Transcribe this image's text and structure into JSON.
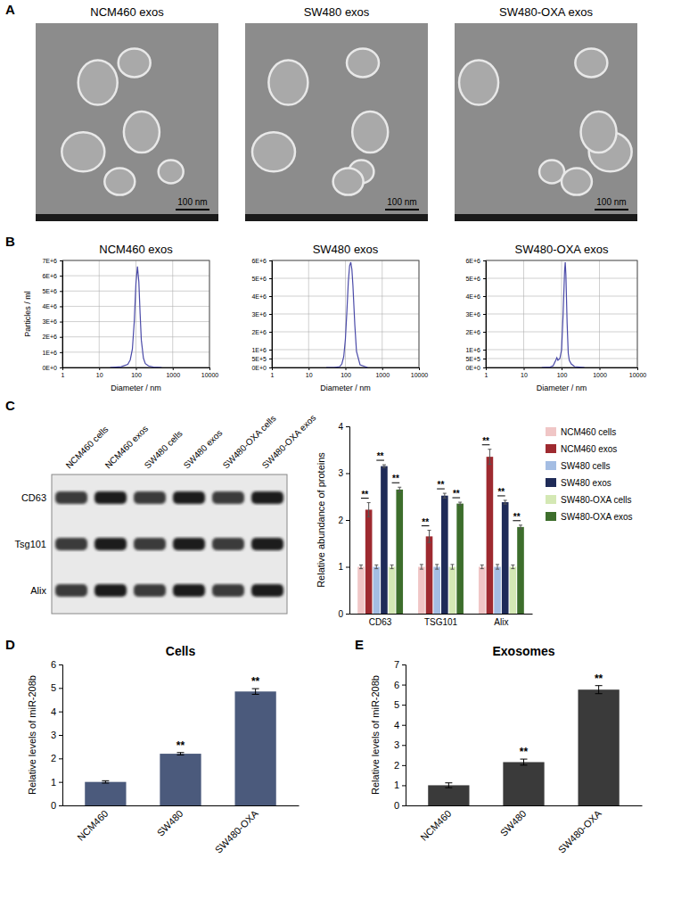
{
  "panel_labels": [
    "A",
    "B",
    "C",
    "D",
    "E"
  ],
  "micrographs": [
    {
      "title": "NCM460 exos",
      "scale_bar": "100 nm"
    },
    {
      "title": "SW480 exos",
      "scale_bar": "100 nm"
    },
    {
      "title": "SW480-OXA exos",
      "scale_bar": "100 nm"
    }
  ],
  "blot": {
    "lanes": [
      "NCM460 cells",
      "NCM460 exos",
      "SW480 cells",
      "SW480 exos",
      "SW480-OXA cells",
      "SW480-OXA exos"
    ],
    "rows": [
      "CD63",
      "Tsg101",
      "Alix"
    ]
  },
  "chart_data": [
    {
      "type": "line",
      "title": "NCM460 exos",
      "xlabel": "Diameter / nm",
      "ylabel": "Particles / ml",
      "log": "x",
      "grid": true,
      "color": "#4a4aa8",
      "x": [
        20,
        40,
        60,
        70,
        80,
        90,
        100,
        110,
        120,
        130,
        140,
        160,
        180,
        220,
        300,
        500
      ],
      "values": [
        0,
        50000,
        200000,
        500000,
        1200000,
        3000000,
        5500000,
        6600000,
        5600000,
        3500000,
        1800000,
        600000,
        250000,
        100000,
        30000,
        0
      ],
      "xlim": [
        1,
        10000
      ],
      "xticks": [
        1,
        10,
        100,
        1000,
        10000
      ],
      "ylim": [
        0,
        7000000
      ],
      "yticks": [
        {
          "value": 0,
          "label": "0E+0"
        },
        {
          "value": 1000000,
          "label": "1E+6"
        },
        {
          "value": 2000000,
          "label": "2E+6"
        },
        {
          "value": 3000000,
          "label": "3E+6"
        },
        {
          "value": 4000000,
          "label": "4E+6"
        },
        {
          "value": 5000000,
          "label": "5E+6"
        },
        {
          "value": 6000000,
          "label": "6E+6"
        },
        {
          "value": 7000000,
          "label": "7E+6"
        }
      ]
    },
    {
      "type": "line",
      "title": "SW480 exos",
      "xlabel": "Diameter / nm",
      "log": "x",
      "grid": true,
      "color": "#4a4aa8",
      "x": [
        30,
        50,
        70,
        80,
        90,
        100,
        110,
        120,
        130,
        140,
        150,
        160,
        180,
        200,
        250,
        400
      ],
      "values": [
        0,
        0,
        50000,
        200000,
        600000,
        1600000,
        3200000,
        4800000,
        5700000,
        5900000,
        5500000,
        4600000,
        2400000,
        900000,
        150000,
        0
      ],
      "xlim": [
        1,
        10000
      ],
      "xticks": [
        1,
        10,
        100,
        1000,
        10000
      ],
      "ylim": [
        0,
        6000000
      ],
      "yticks": [
        {
          "value": 0,
          "label": "0E+0"
        },
        {
          "value": 500000,
          "label": "5E+5"
        },
        {
          "value": 1000000,
          "label": "1E+6"
        },
        {
          "value": 2000000,
          "label": "2E+6"
        },
        {
          "value": 3000000,
          "label": "3E+6"
        },
        {
          "value": 4000000,
          "label": "4E+6"
        },
        {
          "value": 5000000,
          "label": "5E+6"
        },
        {
          "value": 6000000,
          "label": "6E+6"
        }
      ]
    },
    {
      "type": "line",
      "title": "SW480-OXA exos",
      "xlabel": "Diameter / nm",
      "log": "x",
      "grid": true,
      "color": "#4a4aa8",
      "x": [
        30,
        50,
        60,
        70,
        75,
        80,
        90,
        100,
        110,
        120,
        125,
        130,
        140,
        150,
        160,
        180,
        220,
        400
      ],
      "values": [
        0,
        20000,
        100000,
        400000,
        550000,
        400000,
        500000,
        1000000,
        3000000,
        5400000,
        5900000,
        5200000,
        2500000,
        800000,
        400000,
        200000,
        50000,
        0
      ],
      "xlim": [
        1,
        10000
      ],
      "xticks": [
        1,
        10,
        100,
        1000,
        10000
      ],
      "ylim": [
        0,
        6000000
      ],
      "yticks": [
        {
          "value": 0,
          "label": "0E+0"
        },
        {
          "value": 500000,
          "label": "5E+5"
        },
        {
          "value": 1000000,
          "label": "1E+6"
        },
        {
          "value": 2000000,
          "label": "2E+6"
        },
        {
          "value": 3000000,
          "label": "3E+6"
        },
        {
          "value": 4000000,
          "label": "4E+6"
        },
        {
          "value": 5000000,
          "label": "5E+6"
        },
        {
          "value": 6000000,
          "label": "6E+6"
        }
      ]
    },
    {
      "type": "bar",
      "ylabel": "Relative abundance of proteins",
      "legend": "right",
      "categories": [
        "CD63",
        "TSG101",
        "Alix"
      ],
      "series": [
        {
          "name": "NCM460 cells",
          "color": "#f0c6c6",
          "values": [
            1,
            1,
            1
          ],
          "errors": [
            0.04,
            0.05,
            0.04
          ]
        },
        {
          "name": "NCM460 exos",
          "color": "#9e2a30",
          "values": [
            2.22,
            1.65,
            3.35
          ],
          "errors": [
            0.15,
            0.13,
            0.16
          ]
        },
        {
          "name": "SW480 cells",
          "color": "#a4bde3",
          "values": [
            1,
            1,
            1
          ],
          "errors": [
            0.04,
            0.05,
            0.05
          ]
        },
        {
          "name": "SW480 exos",
          "color": "#1f2b58",
          "values": [
            3.15,
            2.52,
            2.38
          ],
          "errors": [
            0.03,
            0.05,
            0.04
          ]
        },
        {
          "name": "SW480-OXA cells",
          "color": "#d4e8b4",
          "values": [
            1,
            1,
            1
          ],
          "errors": [
            0.04,
            0.05,
            0.04
          ]
        },
        {
          "name": "SW480-OXA exos",
          "color": "#3d6e2c",
          "values": [
            2.65,
            2.35,
            1.85
          ],
          "errors": [
            0.05,
            0.03,
            0.04
          ]
        }
      ],
      "ylim": [
        0,
        4
      ],
      "yticks": [
        0,
        1,
        2,
        3,
        4
      ],
      "significance": [
        {
          "category": "CD63",
          "series": [
            "NCM460 cells",
            "NCM460 exos"
          ],
          "label": "**"
        },
        {
          "category": "CD63",
          "series": [
            "SW480 cells",
            "SW480 exos"
          ],
          "label": "**"
        },
        {
          "category": "CD63",
          "series": [
            "SW480-OXA cells",
            "SW480-OXA exos"
          ],
          "label": "**"
        },
        {
          "category": "TSG101",
          "series": [
            "NCM460 cells",
            "NCM460 exos"
          ],
          "label": "**"
        },
        {
          "category": "TSG101",
          "series": [
            "SW480 cells",
            "SW480 exos"
          ],
          "label": "**"
        },
        {
          "category": "TSG101",
          "series": [
            "SW480-OXA cells",
            "SW480-OXA exos"
          ],
          "label": "**"
        },
        {
          "category": "Alix",
          "series": [
            "NCM460 cells",
            "NCM460 exos"
          ],
          "label": "**"
        },
        {
          "category": "Alix",
          "series": [
            "SW480 cells",
            "SW480 exos"
          ],
          "label": "**"
        },
        {
          "category": "Alix",
          "series": [
            "SW480-OXA cells",
            "SW480-OXA exos"
          ],
          "label": "**"
        }
      ]
    },
    {
      "type": "bar",
      "title": "Cells",
      "ylabel": "Relative levels of miR-208b",
      "color": "#4b5a7c",
      "categories": [
        "NCM460",
        "SW480",
        "SW480-OXA"
      ],
      "values": [
        1,
        2.2,
        4.85
      ],
      "errors": [
        0.05,
        0.05,
        0.12
      ],
      "ylim": [
        0,
        6
      ],
      "yticks": [
        0,
        1,
        2,
        3,
        4,
        5,
        6
      ],
      "significance": [
        {
          "category": "SW480",
          "label": "**"
        },
        {
          "category": "SW480-OXA",
          "label": "**"
        }
      ]
    },
    {
      "type": "bar",
      "title": "Exosomes",
      "ylabel": "Relative levels of miR-208b",
      "color": "#3a3a3a",
      "categories": [
        "NCM460",
        "SW480",
        "SW480-OXA"
      ],
      "values": [
        1,
        2.15,
        5.75
      ],
      "errors": [
        0.12,
        0.15,
        0.2
      ],
      "ylim": [
        0,
        7
      ],
      "yticks": [
        0,
        1,
        2,
        3,
        4,
        5,
        6,
        7
      ],
      "significance": [
        {
          "category": "SW480",
          "label": "**"
        },
        {
          "category": "SW480-OXA",
          "label": "**"
        }
      ]
    }
  ]
}
